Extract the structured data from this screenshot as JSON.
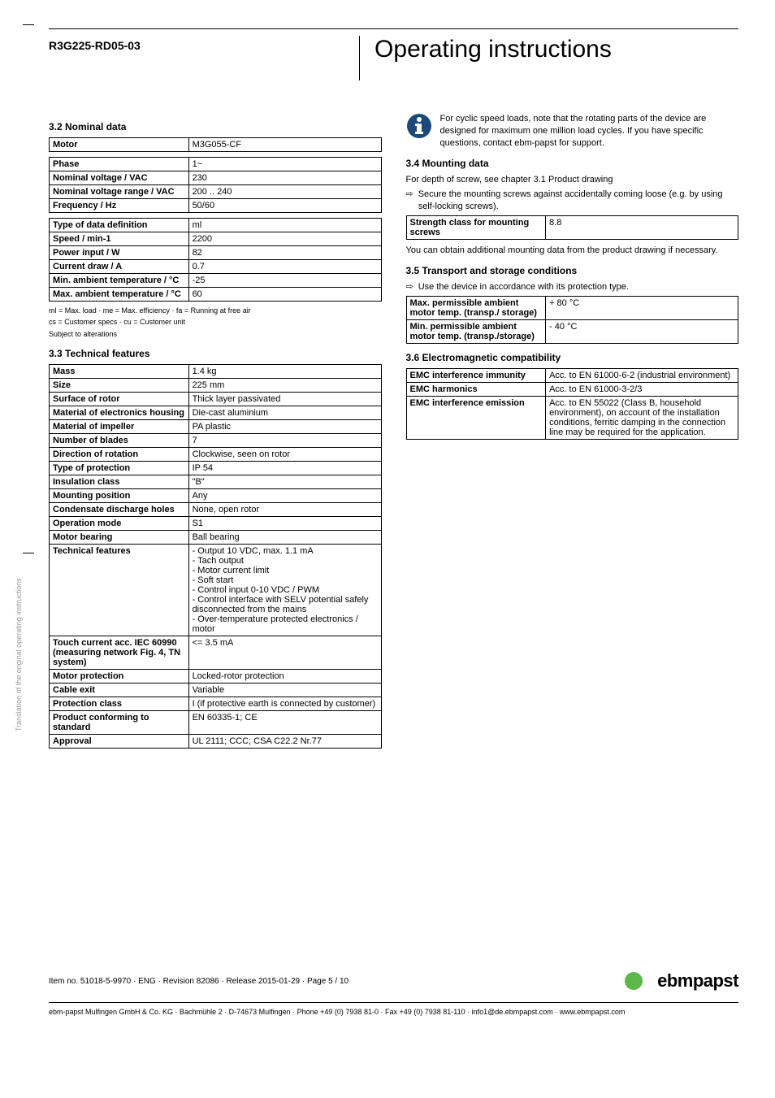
{
  "header": {
    "model": "R3G225-RD05-03",
    "title": "Operating instructions"
  },
  "vertical_label": "Translation of the original operating instructions",
  "left": {
    "s32": {
      "title": "3.2 Nominal data",
      "motor_table": [
        {
          "label": "Motor",
          "value": "M3G055-CF"
        }
      ],
      "nominal_table": [
        {
          "label": "Phase",
          "value": "1~"
        },
        {
          "label": "Nominal voltage / VAC",
          "value": "230"
        },
        {
          "label": "Nominal voltage range / VAC",
          "value": "200 .. 240"
        },
        {
          "label": "Frequency / Hz",
          "value": "50/60"
        }
      ],
      "perf_table": [
        {
          "label": "Type of data definition",
          "value": "ml"
        },
        {
          "label": "Speed / min-1",
          "value": "2200"
        },
        {
          "label": "Power input / W",
          "value": "82"
        },
        {
          "label": "Current draw / A",
          "value": "0.7"
        },
        {
          "label": "Min. ambient temperature / °C",
          "value": "-25"
        },
        {
          "label": "Max. ambient temperature / °C",
          "value": "60"
        }
      ],
      "footnote1": "ml = Max. load · me = Max. efficiency · fa = Running at free air",
      "footnote2": "cs = Customer specs · cu = Customer unit",
      "footnote3": "Subject to alterations"
    },
    "s33": {
      "title": "3.3 Technical features",
      "table": [
        {
          "label": "Mass",
          "value": "1.4 kg"
        },
        {
          "label": "Size",
          "value": "225 mm"
        },
        {
          "label": "Surface of rotor",
          "value": "Thick layer passivated"
        },
        {
          "label": "Material of electronics housing",
          "value": "Die-cast aluminium"
        },
        {
          "label": "Material of impeller",
          "value": "PA plastic"
        },
        {
          "label": "Number of blades",
          "value": "7"
        },
        {
          "label": "Direction of rotation",
          "value": "Clockwise, seen on rotor"
        },
        {
          "label": "Type of protection",
          "value": "IP 54"
        },
        {
          "label": "Insulation class",
          "value": "\"B\""
        },
        {
          "label": "Mounting position",
          "value": "Any"
        },
        {
          "label": "Condensate discharge holes",
          "value": "None, open rotor"
        },
        {
          "label": "Operation mode",
          "value": "S1"
        },
        {
          "label": "Motor bearing",
          "value": "Ball bearing"
        },
        {
          "label": "Technical features",
          "value": "- Output 10 VDC, max. 1.1 mA\n- Tach output\n- Motor current limit\n- Soft start\n- Control input 0-10 VDC / PWM\n- Control interface with SELV potential safely disconnected from the mains\n- Over-temperature protected electronics / motor"
        },
        {
          "label": "Touch current acc. IEC 60990 (measuring network Fig. 4, TN system)",
          "value": "<= 3.5 mA"
        },
        {
          "label": "Motor protection",
          "value": "Locked-rotor protection"
        },
        {
          "label": "Cable exit",
          "value": "Variable"
        },
        {
          "label": "Protection class",
          "value": "I (if protective earth is connected by customer)"
        },
        {
          "label": "Product conforming to standard",
          "value": "EN 60335-1; CE"
        },
        {
          "label": "Approval",
          "value": "UL 2111; CCC; CSA C22.2 Nr.77"
        }
      ]
    }
  },
  "right": {
    "info_note": "For cyclic speed loads, note that the rotating parts of the device are designed for maximum one million load cycles. If you have specific questions, contact ebm-papst for support.",
    "s34": {
      "title": "3.4 Mounting data",
      "line1": "For depth of screw, see chapter 3.1 Product drawing",
      "bullet": "Secure the mounting screws against accidentally coming loose (e.g. by using self-locking screws).",
      "table": [
        {
          "label": "Strength class for mounting screws",
          "value": "8.8"
        }
      ],
      "line2": "You can obtain additional mounting data from the product drawing if necessary."
    },
    "s35": {
      "title": "3.5 Transport and storage conditions",
      "bullet": "Use the device in accordance with its protection type.",
      "table": [
        {
          "label": "Max. permissible ambient motor temp. (transp./ storage)",
          "value": "+ 80 °C"
        },
        {
          "label": "Min. permissible ambient motor temp. (transp./storage)",
          "value": "- 40 °C"
        }
      ]
    },
    "s36": {
      "title": "3.6 Electromagnetic compatibility",
      "table": [
        {
          "label": "EMC interference immunity",
          "value": "Acc. to EN 61000-6-2 (industrial environment)"
        },
        {
          "label": "EMC harmonics",
          "value": "Acc. to EN 61000-3-2/3"
        },
        {
          "label": "EMC interference emission",
          "value": "Acc. to EN 55022 (Class B, household environment), on account of the installation conditions, ferritic damping in the connection line may be required for the application."
        }
      ]
    }
  },
  "footer": {
    "item": "Item no. 51018-5-9970 · ENG · Revision 82086 · Release 2015-01-29 · Page 5 / 10",
    "logo": "ebmpapst",
    "bottom": "ebm-papst Mulfingen GmbH & Co. KG · Bachmühle 2 · D-74673 Mulfingen · Phone +49 (0) 7938 81-0 · Fax +49 (0) 7938 81-110 · info1@de.ebmpapst.com · www.ebmpapst.com"
  },
  "colors": {
    "icon_fill": "#1a4a7a",
    "green": "#5cb848"
  }
}
